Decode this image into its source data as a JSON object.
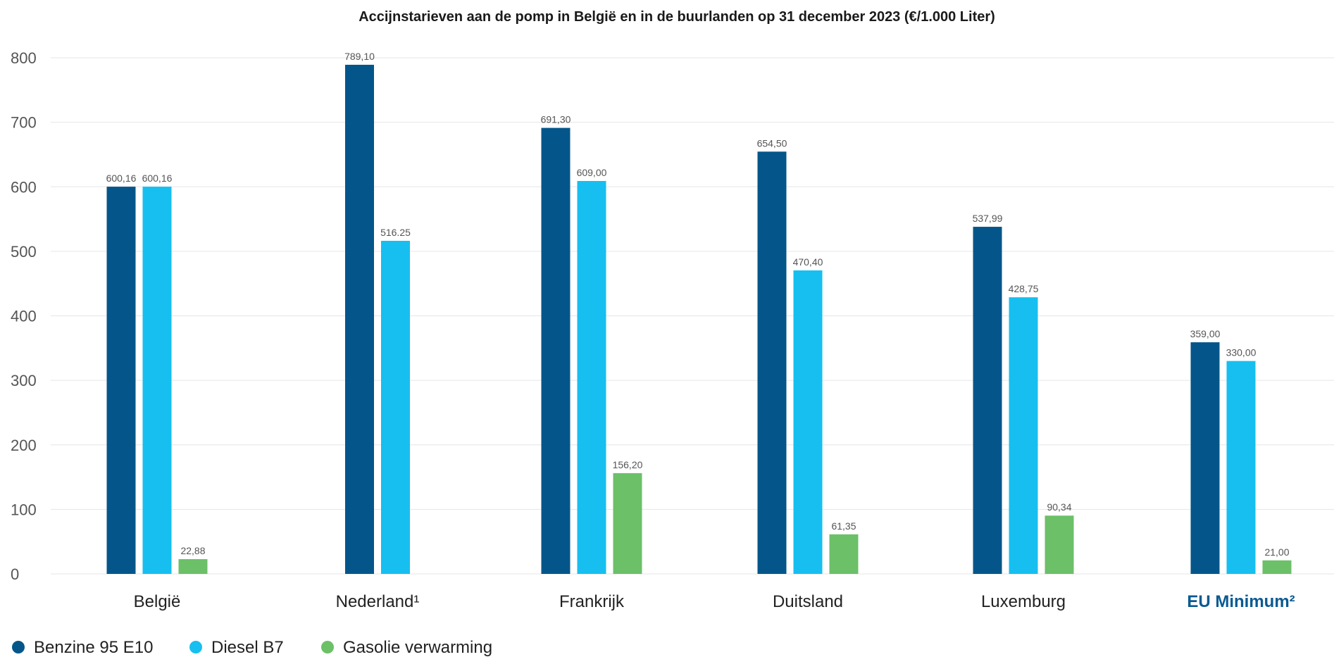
{
  "chart_data": {
    "type": "bar",
    "title": "Accijnstarieven aan de pomp in België en in de buurlanden op 31 december 2023 (€/1.000 Liter)",
    "categories": [
      "België",
      "Nederland¹",
      "Frankrijk",
      "Duitsland",
      "Luxemburg",
      "EU Minimum²"
    ],
    "highlight_category": "EU Minimum²",
    "series": [
      {
        "name": "Benzine 95 E10",
        "color": "#04568a",
        "values": [
          600.16,
          789.1,
          691.3,
          654.5,
          537.99,
          359.0
        ],
        "labels": [
          "600,16",
          "789,10",
          "691,30",
          "654,50",
          "537,99",
          "359,00"
        ]
      },
      {
        "name": "Diesel B7",
        "color": "#16bff0",
        "values": [
          600.16,
          516.25,
          609.0,
          470.4,
          428.75,
          330.0
        ],
        "labels": [
          "600,16",
          "516.25",
          "609,00",
          "470,40",
          "428,75",
          "330,00"
        ]
      },
      {
        "name": "Gasolie verwarming",
        "color": "#6cc068",
        "values": [
          22.88,
          null,
          156.2,
          61.35,
          90.34,
          21.0
        ],
        "labels": [
          "22,88",
          null,
          "156,20",
          "61,35",
          "90,34",
          "21,00"
        ]
      }
    ],
    "ylim": [
      0,
      800
    ],
    "yticks": [
      0,
      100,
      200,
      300,
      400,
      500,
      600,
      700,
      800
    ],
    "grid": true,
    "legend": "bottom-left",
    "xlabel": "",
    "ylabel": ""
  }
}
